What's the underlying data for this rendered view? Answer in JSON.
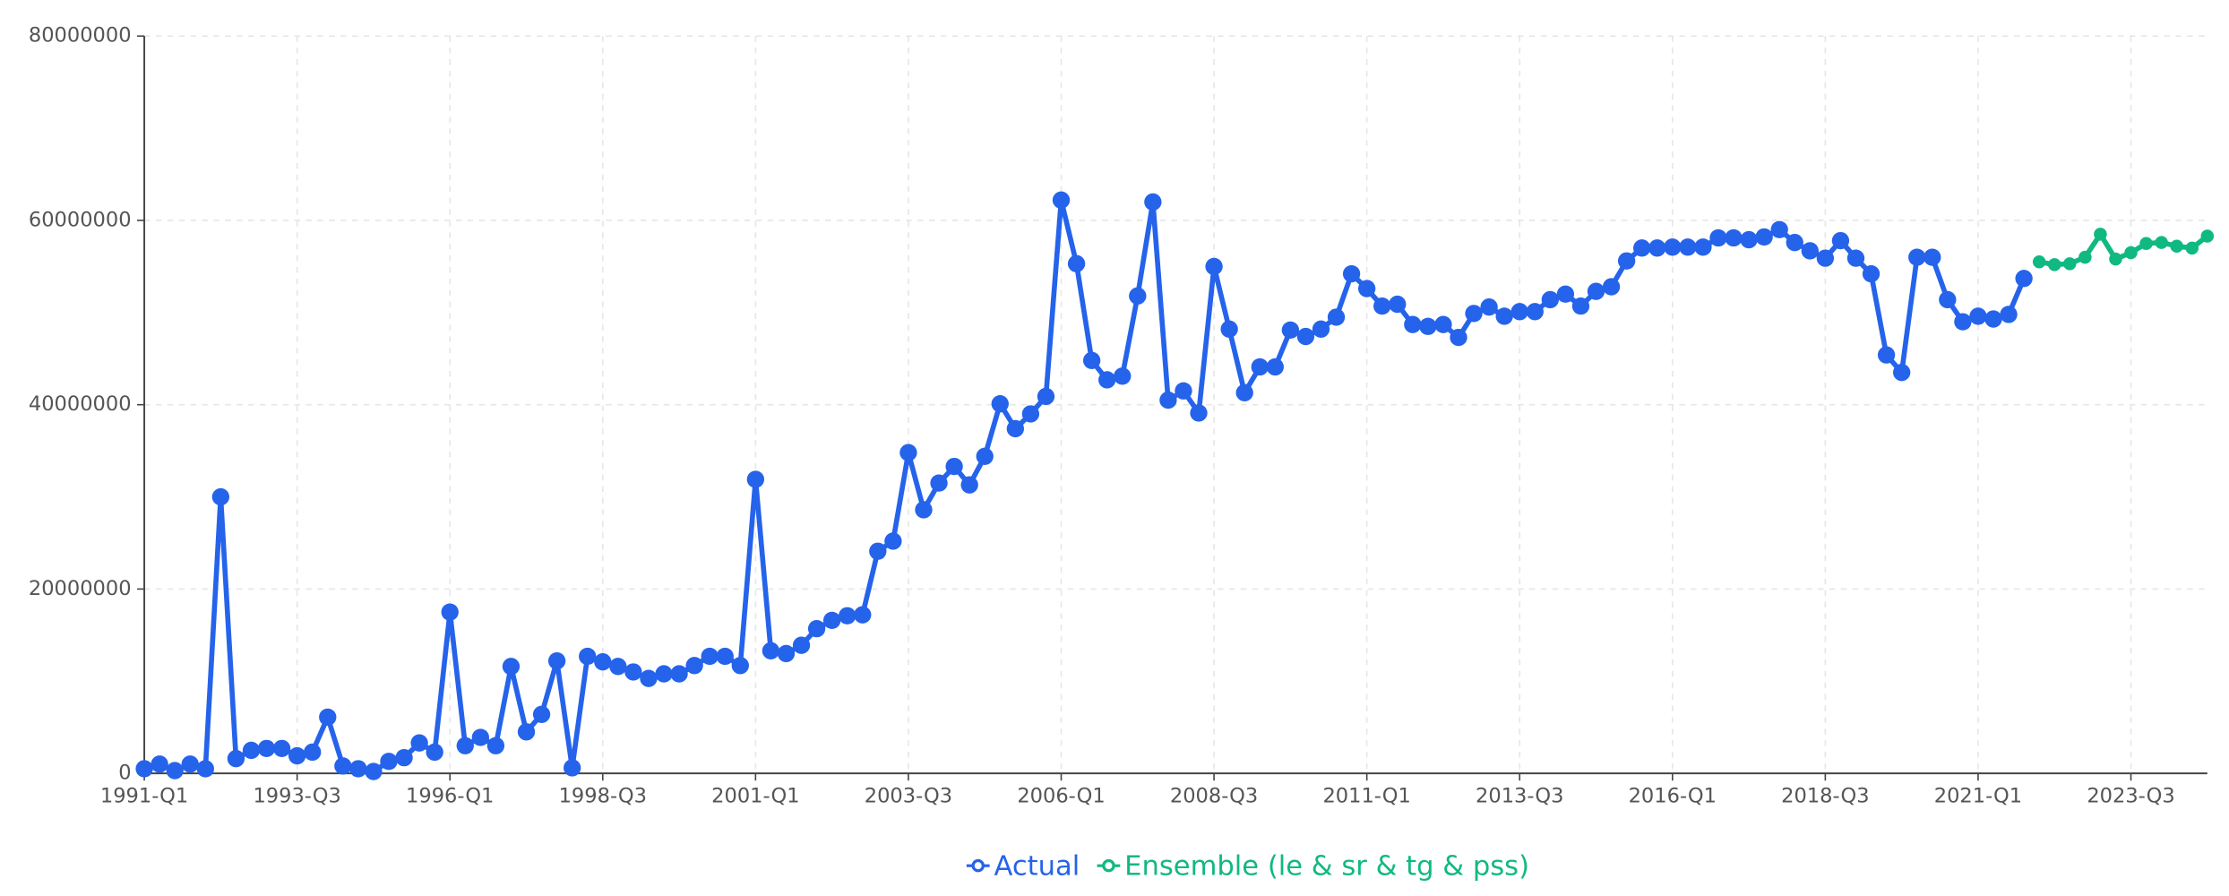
{
  "chart_data": {
    "type": "line",
    "categories": [
      "1991-Q1",
      null,
      null,
      null,
      null,
      null,
      null,
      null,
      null,
      null,
      "1993-Q3",
      null,
      null,
      null,
      null,
      null,
      null,
      null,
      null,
      null,
      "1996-Q1",
      null,
      null,
      null,
      null,
      null,
      null,
      null,
      null,
      null,
      "1998-Q3",
      null,
      null,
      null,
      null,
      null,
      null,
      null,
      null,
      null,
      "2001-Q1",
      null,
      null,
      null,
      null,
      null,
      null,
      null,
      null,
      null,
      "2003-Q3",
      null,
      null,
      null,
      null,
      null,
      null,
      null,
      null,
      null,
      "2006-Q1",
      null,
      null,
      null,
      null,
      null,
      null,
      null,
      null,
      null,
      "2008-Q3",
      null,
      null,
      null,
      null,
      null,
      null,
      null,
      null,
      null,
      "2011-Q1",
      null,
      null,
      null,
      null,
      null,
      null,
      null,
      null,
      null,
      "2013-Q3",
      null,
      null,
      null,
      null,
      null,
      null,
      null,
      null,
      null,
      "2016-Q1",
      null,
      null,
      null,
      null,
      null,
      null,
      null,
      null,
      null,
      "2018-Q3",
      null,
      null,
      null,
      null,
      null,
      null,
      null,
      null,
      null,
      "2021-Q1",
      null,
      null,
      null,
      null,
      null,
      null,
      null,
      null,
      null,
      "2023-Q3",
      null,
      null,
      null,
      null,
      null
    ],
    "series": [
      {
        "name": "Actual",
        "color": "#2563eb",
        "values": [
          500000,
          1000000,
          300000,
          1000000,
          500000,
          30000000,
          1600000,
          2500000,
          2700000,
          2700000,
          1900000,
          2300000,
          6100000,
          800000,
          500000,
          200000,
          1300000,
          1700000,
          3300000,
          2300000,
          17500000,
          3000000,
          3900000,
          3000000,
          11600000,
          4500000,
          6400000,
          12200000,
          600000,
          12700000,
          12100000,
          11600000,
          11000000,
          10300000,
          10800000,
          10800000,
          11700000,
          12700000,
          12700000,
          11700000,
          31900000,
          13300000,
          13000000,
          13900000,
          15700000,
          16600000,
          17100000,
          17200000,
          24100000,
          25200000,
          34800000,
          28600000,
          31500000,
          33300000,
          31300000,
          34400000,
          40100000,
          37400000,
          39000000,
          40900000,
          62200000,
          55300000,
          44800000,
          42700000,
          43100000,
          51800000,
          62000000,
          40500000,
          41500000,
          39100000,
          55000000,
          48200000,
          41300000,
          44100000,
          44100000,
          48100000,
          47400000,
          48200000,
          49500000,
          54200000,
          52600000,
          50700000,
          50900000,
          48700000,
          48500000,
          48700000,
          47300000,
          49900000,
          50600000,
          49600000,
          50100000,
          50100000,
          51400000,
          52000000,
          50700000,
          52300000,
          52800000,
          55600000,
          57000000,
          57000000,
          57100000,
          57100000,
          57100000,
          58100000,
          58100000,
          57900000,
          58200000,
          59000000,
          57600000,
          56700000,
          55900000,
          57800000,
          55900000,
          54200000,
          45400000,
          43500000,
          56000000,
          56000000,
          51400000,
          49000000,
          49600000,
          49300000,
          49800000,
          53700000,
          null,
          null,
          null,
          null,
          null,
          null,
          null,
          null,
          null,
          null,
          null,
          null
        ]
      },
      {
        "name": "Ensemble (le & sr & tg & pss)",
        "color": "#10b981",
        "values": [
          null,
          null,
          null,
          null,
          null,
          null,
          null,
          null,
          null,
          null,
          null,
          null,
          null,
          null,
          null,
          null,
          null,
          null,
          null,
          null,
          null,
          null,
          null,
          null,
          null,
          null,
          null,
          null,
          null,
          null,
          null,
          null,
          null,
          null,
          null,
          null,
          null,
          null,
          null,
          null,
          null,
          null,
          null,
          null,
          null,
          null,
          null,
          null,
          null,
          null,
          null,
          null,
          null,
          null,
          null,
          null,
          null,
          null,
          null,
          null,
          null,
          null,
          null,
          null,
          null,
          null,
          null,
          null,
          null,
          null,
          null,
          null,
          null,
          null,
          null,
          null,
          null,
          null,
          null,
          null,
          null,
          null,
          null,
          null,
          null,
          null,
          null,
          null,
          null,
          null,
          null,
          null,
          null,
          null,
          null,
          null,
          null,
          null,
          null,
          null,
          null,
          null,
          null,
          null,
          null,
          null,
          null,
          null,
          null,
          null,
          null,
          null,
          null,
          null,
          null,
          null,
          null,
          null,
          null,
          null,
          null,
          null,
          null,
          null,
          55500000,
          55200000,
          55300000,
          56000000,
          58500000,
          55800000,
          56500000,
          57500000,
          57600000,
          57200000,
          57000000,
          58300000
        ]
      }
    ],
    "ylim": [
      0,
      80000000
    ],
    "yticks": [
      0,
      20000000,
      40000000,
      60000000,
      80000000
    ],
    "grid": true,
    "legend": "bottom"
  }
}
